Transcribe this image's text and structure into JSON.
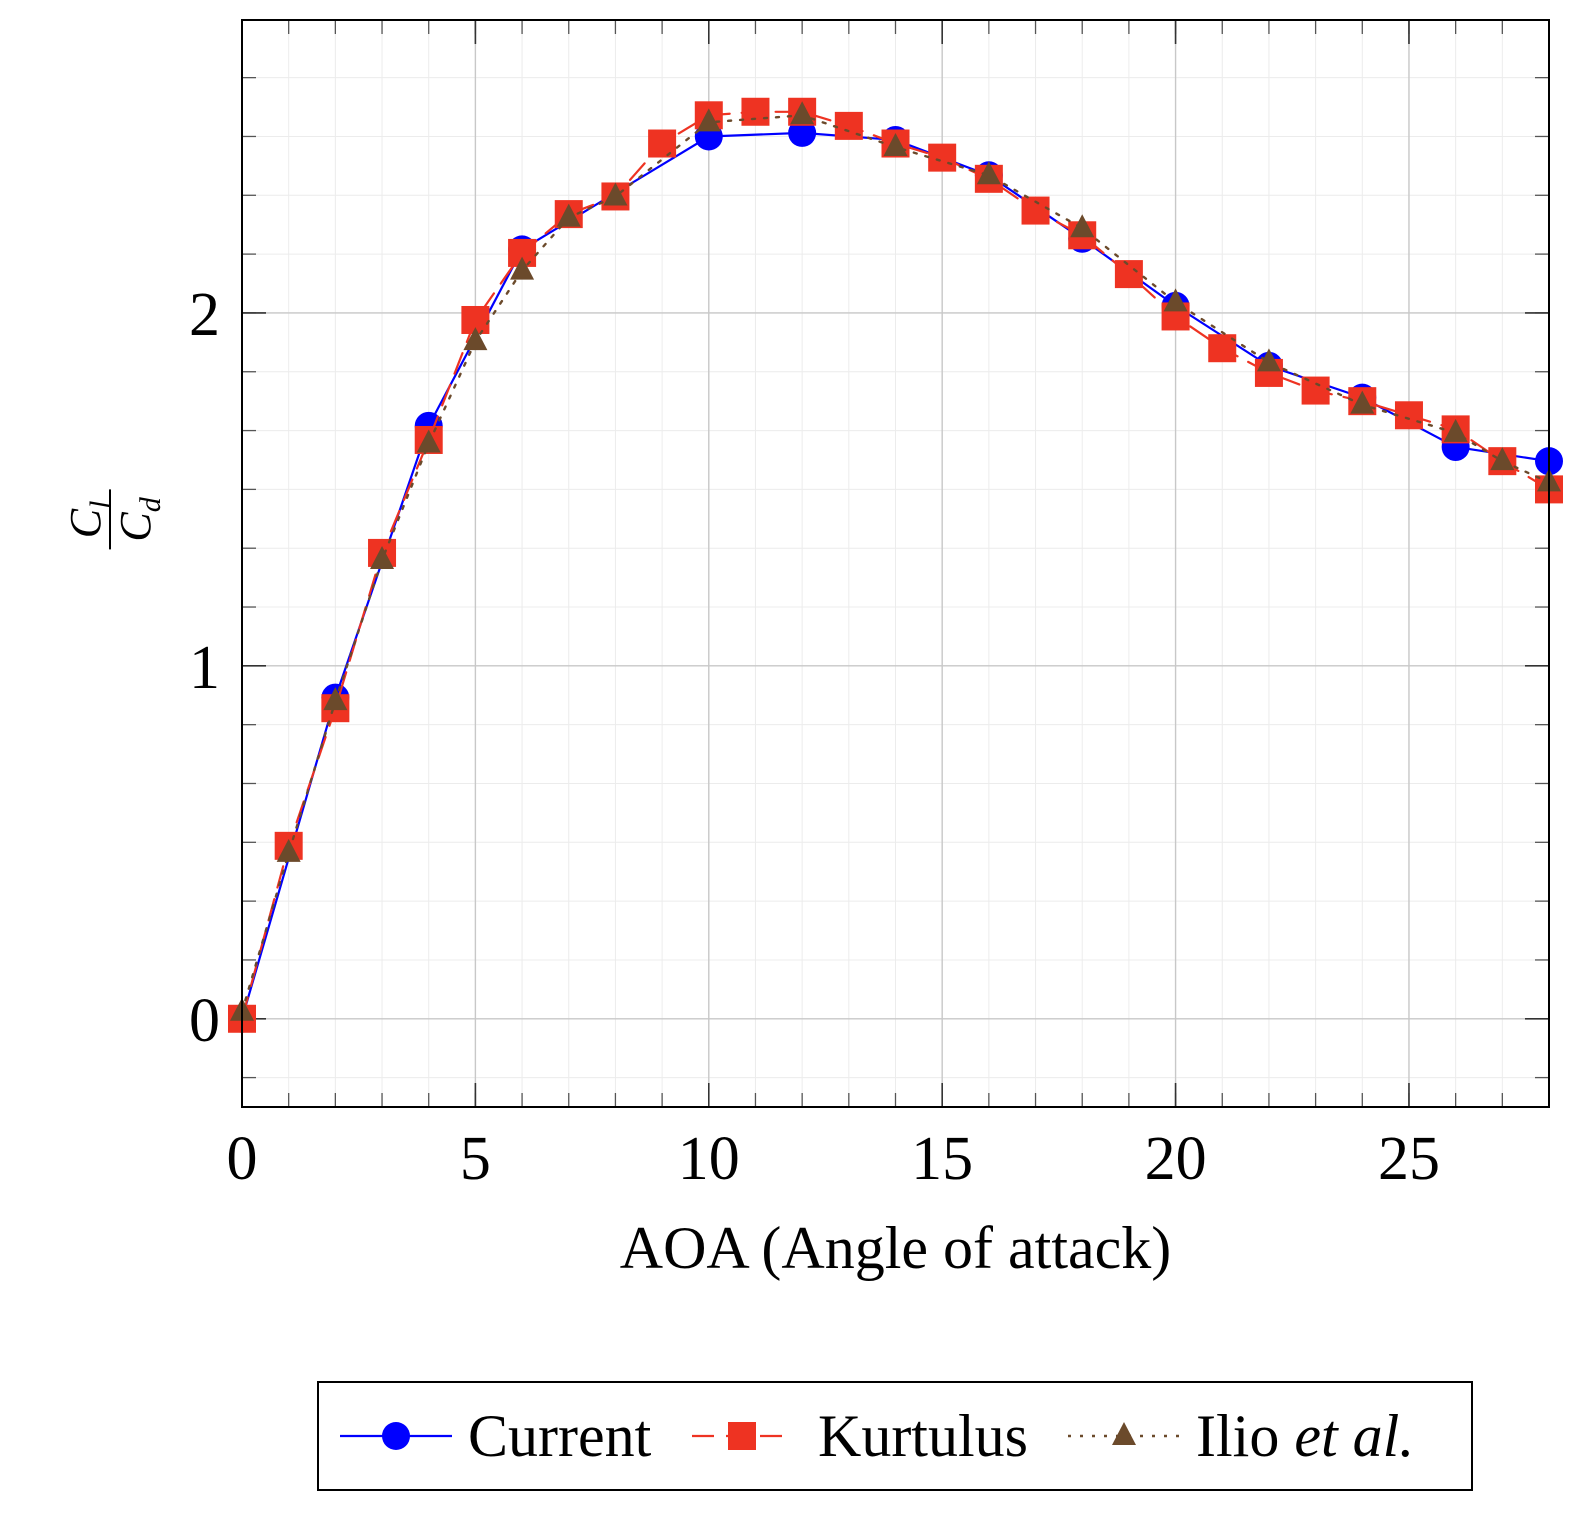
{
  "chart_data": {
    "type": "line",
    "xlabel": "AOA (Angle of attack)",
    "ylabel": {
      "numerator": "C",
      "numerator_sub": "l",
      "denominator": "C",
      "denominator_sub": "d"
    },
    "xlim": [
      0,
      28
    ],
    "ylim": [
      -0.25,
      2.83
    ],
    "xticks": [
      0,
      5,
      10,
      15,
      20,
      25
    ],
    "yticks": [
      0,
      1,
      2
    ],
    "grid": true,
    "legend_position": "bottom-center",
    "series": [
      {
        "name": "Current",
        "color": "#0000ff",
        "marker": "circle",
        "line_style": "solid",
        "x": [
          0,
          2,
          4,
          6,
          10,
          12,
          14,
          16,
          18,
          20,
          22,
          24,
          26,
          28
        ],
        "y": [
          0.0,
          0.91,
          1.68,
          2.18,
          2.5,
          2.51,
          2.49,
          2.39,
          2.21,
          2.02,
          1.85,
          1.76,
          1.62,
          1.58
        ]
      },
      {
        "name": "Kurtulus",
        "color": "#ee3322",
        "marker": "square",
        "line_style": "dashed",
        "x": [
          0,
          1,
          2,
          3,
          4,
          5,
          6,
          7,
          8,
          9,
          10,
          11,
          12,
          13,
          14,
          15,
          16,
          17,
          18,
          19,
          20,
          21,
          22,
          23,
          24,
          25,
          26,
          27,
          28
        ],
        "y": [
          0.0,
          0.49,
          0.88,
          1.32,
          1.64,
          1.98,
          2.17,
          2.28,
          2.33,
          2.48,
          2.56,
          2.57,
          2.57,
          2.53,
          2.48,
          2.44,
          2.38,
          2.29,
          2.22,
          2.11,
          1.99,
          1.9,
          1.83,
          1.78,
          1.75,
          1.71,
          1.67,
          1.58,
          1.5
        ]
      },
      {
        "name": "Ilio et al.",
        "name_parts": [
          "Ilio ",
          "et al."
        ],
        "color": "#6b4a2b",
        "marker": "triangle",
        "line_style": "dotted",
        "x": [
          0,
          1,
          2,
          3,
          4,
          5,
          6,
          7,
          8,
          10,
          12,
          14,
          16,
          18,
          20,
          22,
          24,
          26,
          27,
          28
        ],
        "y": [
          0.02,
          0.47,
          0.9,
          1.3,
          1.63,
          1.92,
          2.12,
          2.27,
          2.33,
          2.54,
          2.56,
          2.47,
          2.39,
          2.24,
          2.03,
          1.86,
          1.74,
          1.66,
          1.58,
          1.52
        ]
      }
    ]
  }
}
